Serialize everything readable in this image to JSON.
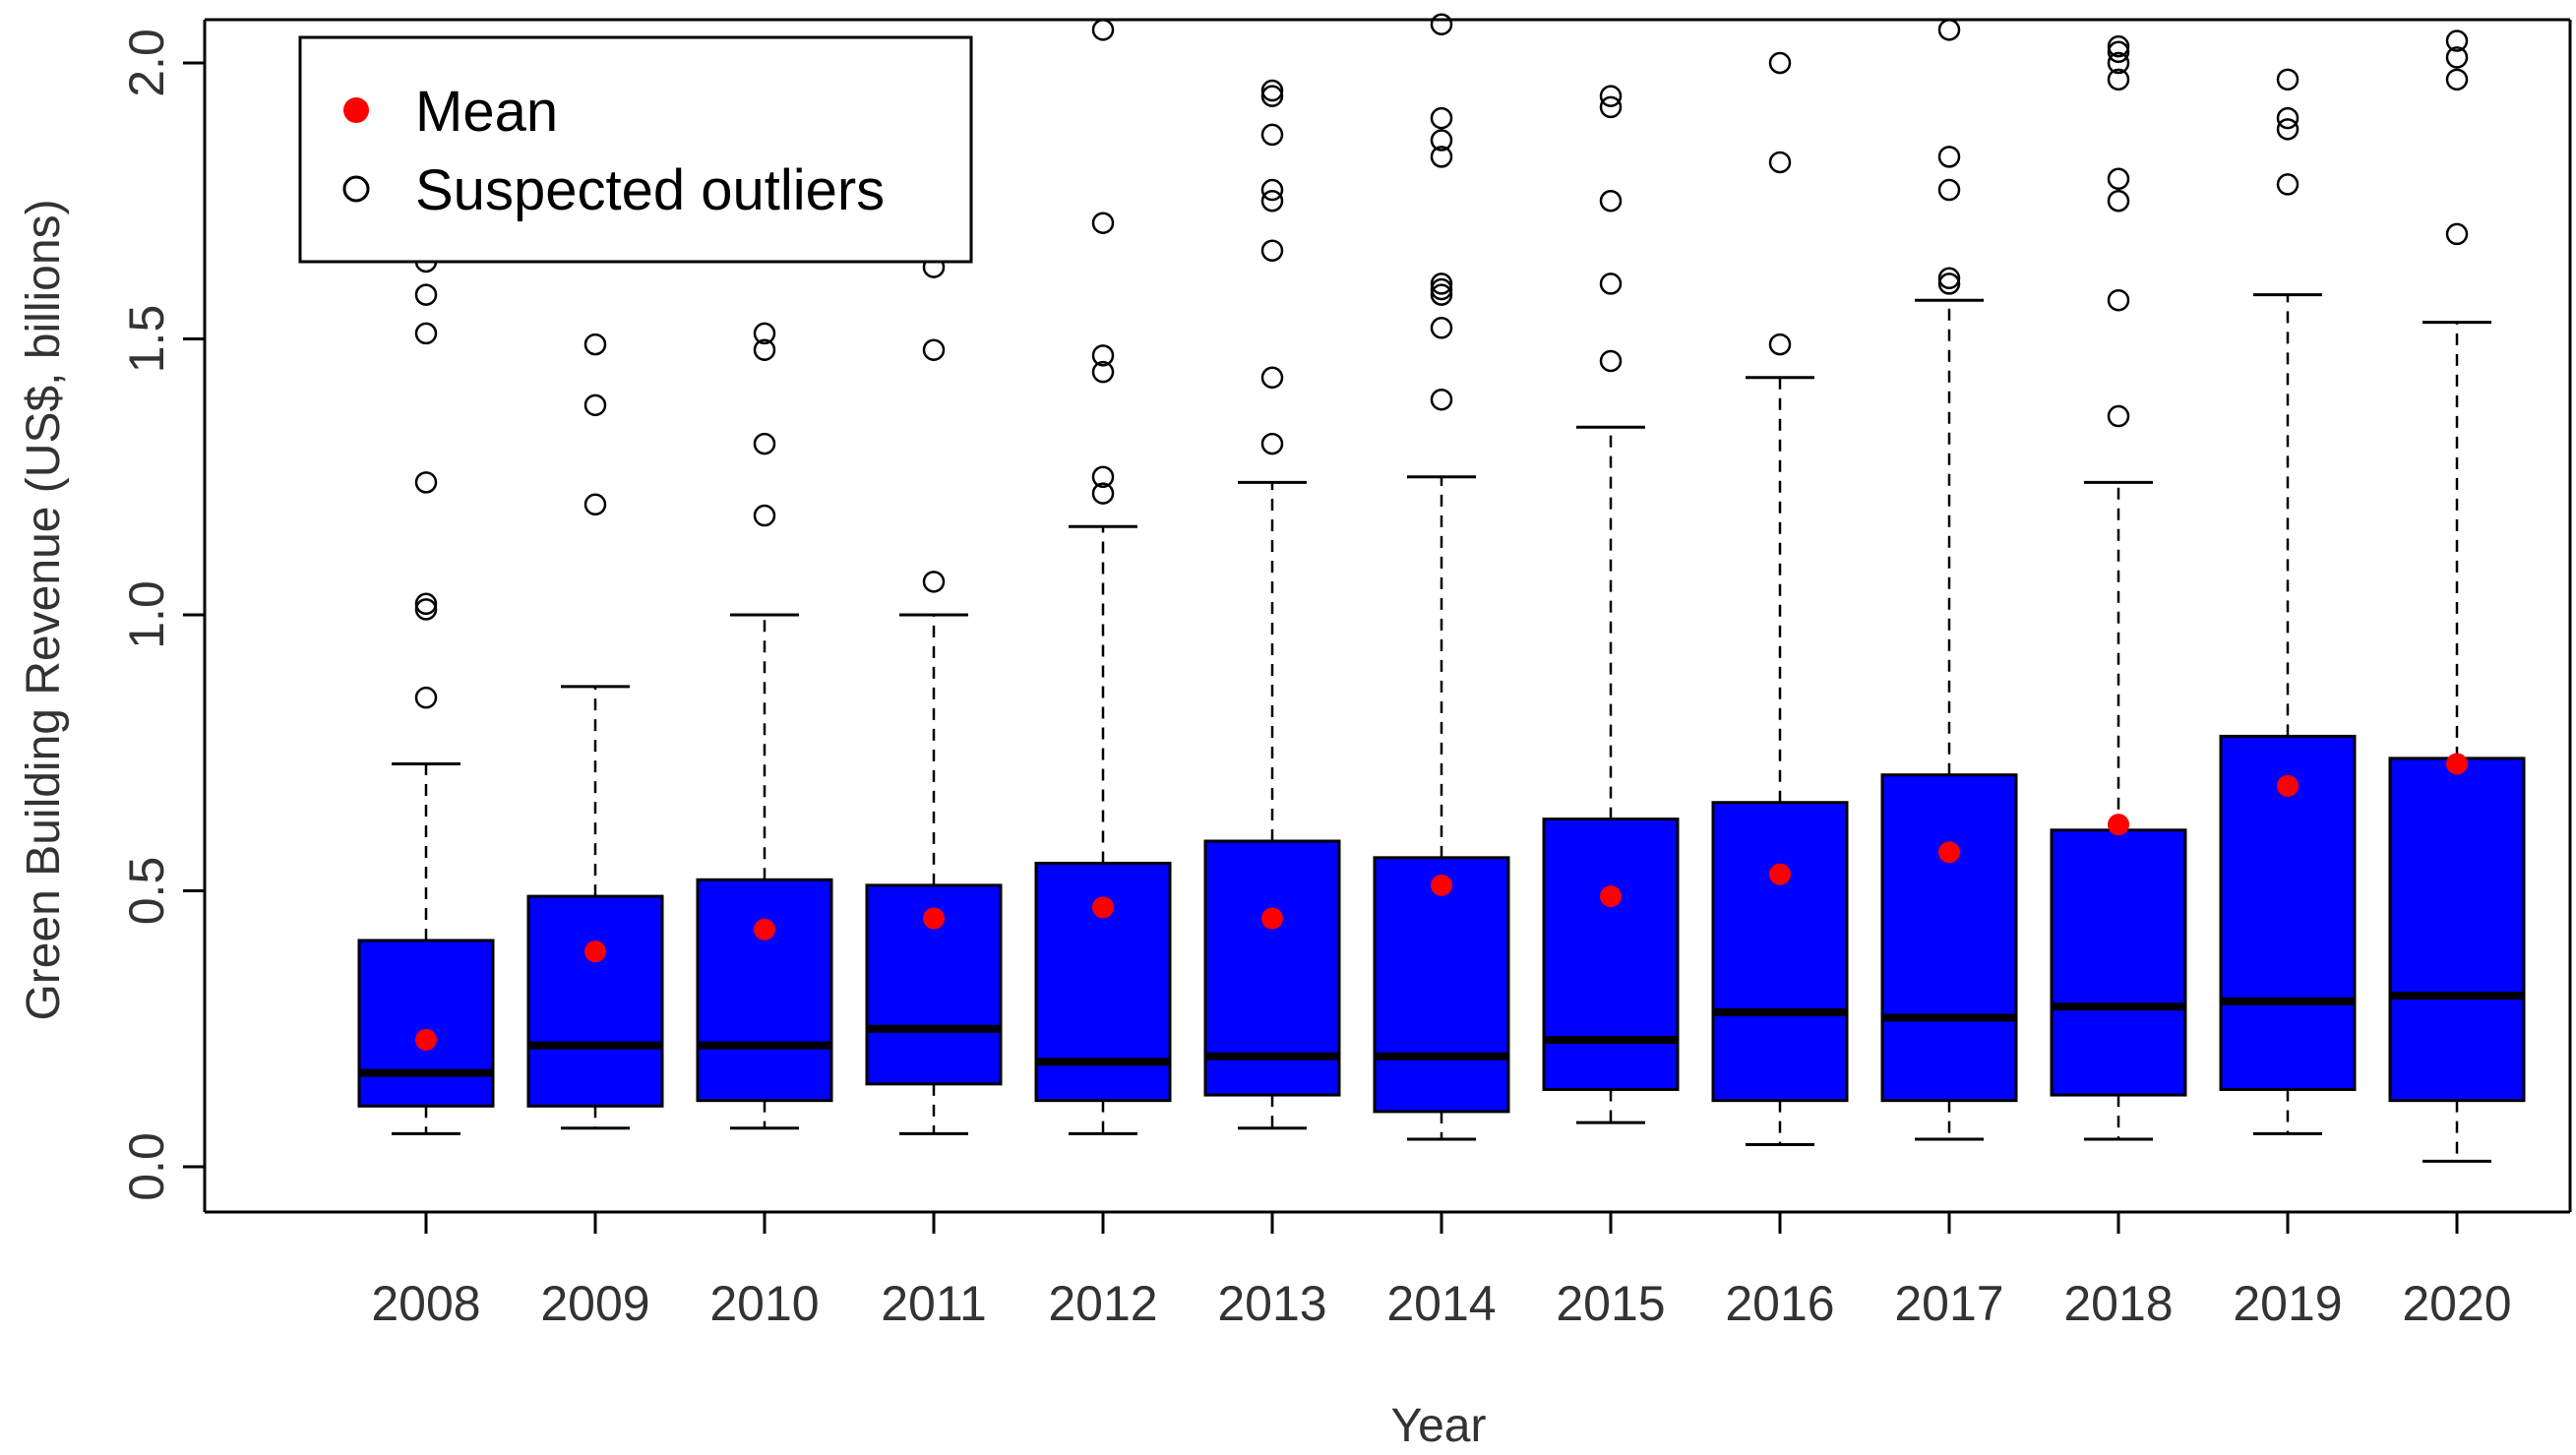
{
  "chart_data": {
    "type": "boxplot",
    "title": "",
    "xlabel": "Year",
    "ylabel": "Green Building Revenue (US$, billions)",
    "ylim": [
      0,
      2.0
    ],
    "yticks": [
      "0.0",
      "0.5",
      "1.0",
      "1.5",
      "2.0"
    ],
    "ytick_values": [
      0,
      0.5,
      1.0,
      1.5,
      2.0
    ],
    "grid": false,
    "legend_position": "top-left",
    "legend": [
      {
        "label": "Mean",
        "marker": "red-filled-circle"
      },
      {
        "label": "Suspected outliers",
        "marker": "open-circle"
      }
    ],
    "colors": {
      "box_fill": "#0000FF",
      "mean": "#FF0000",
      "median": "#000000"
    },
    "categories": [
      "2008",
      "2009",
      "2010",
      "2011",
      "2012",
      "2013",
      "2014",
      "2015",
      "2016",
      "2017",
      "2018",
      "2019",
      "2020"
    ],
    "boxes": [
      {
        "year": "2008",
        "whisker_low": 0.06,
        "q1": 0.11,
        "median": 0.17,
        "q3": 0.41,
        "whisker_high": 0.73,
        "mean": 0.23,
        "outliers": [
          0.85,
          1.01,
          1.02,
          1.24,
          1.51,
          1.58,
          1.64
        ]
      },
      {
        "year": "2009",
        "whisker_low": 0.07,
        "q1": 0.11,
        "median": 0.22,
        "q3": 0.49,
        "whisker_high": 0.87,
        "mean": 0.39,
        "outliers": [
          1.2,
          1.38,
          1.49
        ]
      },
      {
        "year": "2010",
        "whisker_low": 0.07,
        "q1": 0.12,
        "median": 0.22,
        "q3": 0.52,
        "whisker_high": 1.0,
        "mean": 0.43,
        "outliers": [
          1.18,
          1.31,
          1.48,
          1.51
        ]
      },
      {
        "year": "2011",
        "whisker_low": 0.06,
        "q1": 0.15,
        "median": 0.25,
        "q3": 0.51,
        "whisker_high": 1.0,
        "mean": 0.45,
        "outliers": [
          1.06,
          1.48,
          1.63
        ]
      },
      {
        "year": "2012",
        "whisker_low": 0.06,
        "q1": 0.12,
        "median": 0.19,
        "q3": 0.55,
        "whisker_high": 1.16,
        "mean": 0.47,
        "outliers": [
          1.22,
          1.25,
          1.44,
          1.47,
          1.71,
          2.06
        ]
      },
      {
        "year": "2013",
        "whisker_low": 0.07,
        "q1": 0.13,
        "median": 0.2,
        "q3": 0.59,
        "whisker_high": 1.24,
        "mean": 0.45,
        "outliers": [
          1.31,
          1.43,
          1.66,
          1.75,
          1.77,
          1.87,
          1.94,
          1.95
        ]
      },
      {
        "year": "2014",
        "whisker_low": 0.05,
        "q1": 0.1,
        "median": 0.2,
        "q3": 0.56,
        "whisker_high": 1.25,
        "mean": 0.51,
        "outliers": [
          1.39,
          1.52,
          1.58,
          1.59,
          1.6,
          1.83,
          1.86,
          1.9,
          2.07
        ]
      },
      {
        "year": "2015",
        "whisker_low": 0.08,
        "q1": 0.14,
        "median": 0.23,
        "q3": 0.63,
        "whisker_high": 1.34,
        "mean": 0.49,
        "outliers": [
          1.46,
          1.6,
          1.75,
          1.92,
          1.94
        ]
      },
      {
        "year": "2016",
        "whisker_low": 0.04,
        "q1": 0.12,
        "median": 0.28,
        "q3": 0.66,
        "whisker_high": 1.43,
        "mean": 0.53,
        "outliers": [
          1.49,
          1.82,
          2.0
        ]
      },
      {
        "year": "2017",
        "whisker_low": 0.05,
        "q1": 0.12,
        "median": 0.27,
        "q3": 0.71,
        "whisker_high": 1.57,
        "mean": 0.57,
        "outliers": [
          1.6,
          1.61,
          1.77,
          1.83,
          2.06
        ]
      },
      {
        "year": "2018",
        "whisker_low": 0.05,
        "q1": 0.13,
        "median": 0.29,
        "q3": 0.61,
        "whisker_high": 1.24,
        "mean": 0.62,
        "outliers": [
          1.36,
          1.57,
          1.75,
          1.79,
          1.97,
          2.0,
          2.02,
          2.03
        ]
      },
      {
        "year": "2019",
        "whisker_low": 0.06,
        "q1": 0.14,
        "median": 0.3,
        "q3": 0.78,
        "whisker_high": 1.58,
        "mean": 0.69,
        "outliers": [
          1.78,
          1.88,
          1.9,
          1.97
        ]
      },
      {
        "year": "2020",
        "whisker_low": 0.01,
        "q1": 0.12,
        "median": 0.31,
        "q3": 0.74,
        "whisker_high": 1.53,
        "mean": 0.73,
        "outliers": [
          1.69,
          1.97,
          2.01,
          2.04
        ]
      }
    ]
  }
}
